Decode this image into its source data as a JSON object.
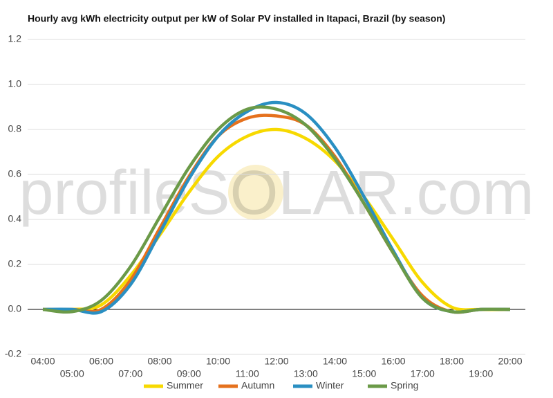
{
  "chart_data": {
    "type": "line",
    "title": "Hourly avg kWh electricity output per kW of Solar PV installed in Itapaci, Brazil (by season)",
    "watermark": "profileSOLAR.com",
    "categories": [
      "04:00",
      "05:00",
      "06:00",
      "07:00",
      "08:00",
      "09:00",
      "10:00",
      "11:00",
      "12:00",
      "13:00",
      "14:00",
      "15:00",
      "16:00",
      "17:00",
      "18:00",
      "19:00",
      "20:00"
    ],
    "series": [
      {
        "name": "Summer",
        "color": "#f7d900",
        "values": [
          0,
          0,
          0.02,
          0.15,
          0.33,
          0.52,
          0.68,
          0.77,
          0.8,
          0.76,
          0.66,
          0.5,
          0.31,
          0.12,
          0.01,
          0,
          0
        ]
      },
      {
        "name": "Autumn",
        "color": "#e5711d",
        "values": [
          0,
          0,
          0,
          0.13,
          0.36,
          0.59,
          0.77,
          0.85,
          0.86,
          0.82,
          0.68,
          0.47,
          0.25,
          0.06,
          -0.01,
          0,
          0
        ]
      },
      {
        "name": "Winter",
        "color": "#2a8fc2",
        "values": [
          0,
          0,
          -0.01,
          0.11,
          0.34,
          0.58,
          0.77,
          0.88,
          0.92,
          0.87,
          0.72,
          0.5,
          0.26,
          0.05,
          -0.01,
          0,
          0
        ]
      },
      {
        "name": "Spring",
        "color": "#6b9a48",
        "values": [
          0,
          -0.01,
          0.04,
          0.19,
          0.41,
          0.63,
          0.8,
          0.89,
          0.89,
          0.82,
          0.67,
          0.47,
          0.25,
          0.05,
          -0.01,
          0,
          0
        ]
      }
    ],
    "ylim": [
      -0.2,
      1.2
    ],
    "yticks": [
      -0.2,
      {
        "value": 0,
        "label": "0.0"
      },
      0.2,
      0.4,
      0.6,
      0.8,
      {
        "value": 1,
        "label": "1.0"
      },
      1.2
    ],
    "grid": true,
    "legend": "bottom"
  }
}
